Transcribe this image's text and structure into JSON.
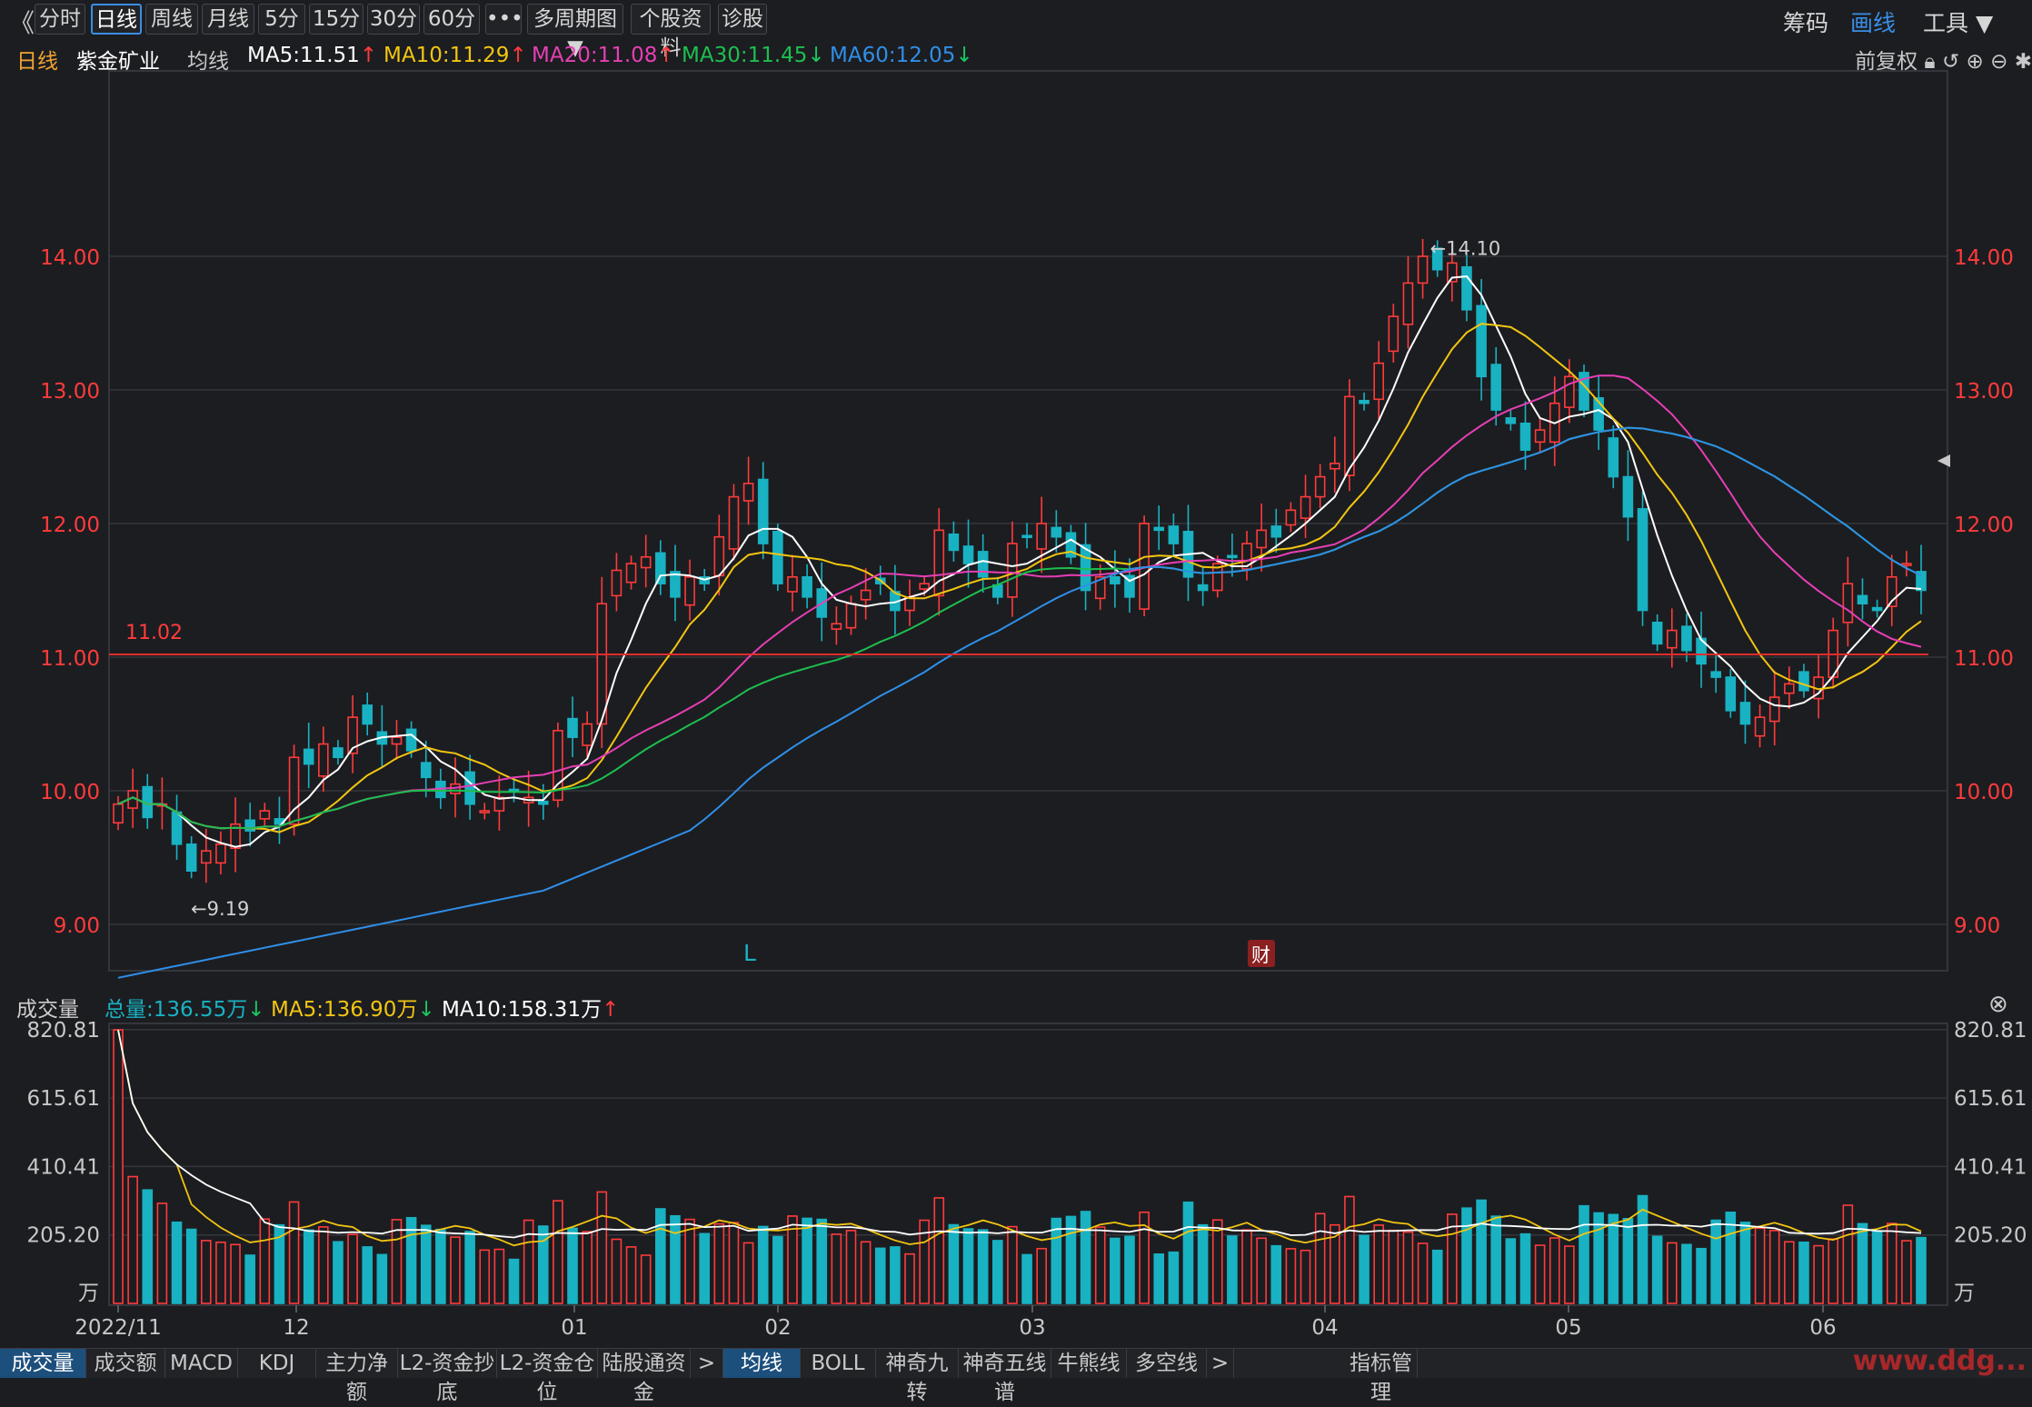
{
  "toolbar": {
    "back": "《",
    "tabs": [
      {
        "label": "分时",
        "active": false
      },
      {
        "label": "日线",
        "active": true
      },
      {
        "label": "周线",
        "active": false
      },
      {
        "label": "月线",
        "active": false
      },
      {
        "label": "5分",
        "active": false
      },
      {
        "label": "15分",
        "active": false
      },
      {
        "label": "30分",
        "active": false
      },
      {
        "label": "60分",
        "active": false
      },
      {
        "label": "•••",
        "active": false
      },
      {
        "label": "多周期图 ▼",
        "active": false
      },
      {
        "label": "个股资料",
        "active": false
      },
      {
        "label": "诊股",
        "active": false
      }
    ],
    "right": [
      "筹码",
      "画线",
      "工具 ▼"
    ]
  },
  "ma_line": {
    "period": "日线",
    "stock_name": "紫金矿业",
    "avg_label": "均线",
    "ma5": "MA5:11.51",
    "ma10": "MA10:11.29",
    "ma20": "MA20:11.08",
    "ma30": "MA30:11.45",
    "ma60": "MA60:12.05",
    "ma5_dir": "↑",
    "ma10_dir": "↑",
    "ma20_dir": "↑",
    "ma30_dir": "↓",
    "ma60_dir": "↓",
    "restore": "前复权"
  },
  "volume_line": {
    "title": "成交量",
    "total": "总量:136.55万",
    "total_dir": "↓",
    "ma5": "MA5:136.90万",
    "ma5_dir": "↓",
    "ma10": "MA10:158.31万",
    "ma10_dir": "↑"
  },
  "colors": {
    "up": "#ff3b3b",
    "down": "#19b2c2",
    "ma5": "#ffffff",
    "ma10": "#f2c511",
    "ma20": "#e63fb4",
    "ma30": "#1dbf4e",
    "ma60": "#2f8fe8",
    "price_line": "#e02d2d"
  },
  "chart_data": {
    "type": "candlestick",
    "price_axis": {
      "ticks": [
        "14.00",
        "13.00",
        "12.00",
        "11.00",
        "10.00",
        "9.00"
      ],
      "ylim": [
        8.2,
        14.3
      ]
    },
    "volume_axis": {
      "ticks": [
        "820.81",
        "615.61",
        "410.41",
        "205.20"
      ],
      "unit": "万",
      "ylim": [
        0,
        840
      ]
    },
    "x_labels": [
      "2022/11",
      "12",
      "01",
      "02",
      "03",
      "04",
      "05",
      "06"
    ],
    "annotations": {
      "high": "←14.10",
      "low": "←9.19",
      "level": "11.02",
      "marker_l": "L",
      "marker_cai": "财"
    },
    "level_line": 11.02,
    "closes": [
      9.9,
      10.0,
      9.8,
      9.9,
      9.6,
      9.4,
      9.55,
      9.6,
      9.75,
      9.7,
      9.85,
      9.75,
      10.25,
      10.2,
      10.35,
      10.25,
      10.55,
      10.5,
      10.35,
      10.4,
      10.3,
      10.1,
      9.95,
      10.05,
      9.9,
      9.85,
      9.95,
      10.0,
      9.95,
      9.9,
      10.45,
      10.4,
      10.5,
      11.4,
      11.65,
      11.7,
      11.75,
      11.55,
      11.45,
      11.6,
      11.55,
      11.9,
      12.2,
      12.3,
      11.85,
      11.55,
      11.6,
      11.45,
      11.3,
      11.25,
      11.4,
      11.5,
      11.55,
      11.35,
      11.45,
      11.55,
      11.95,
      11.8,
      11.7,
      11.6,
      11.45,
      11.85,
      11.9,
      12.0,
      11.9,
      11.75,
      11.5,
      11.6,
      11.55,
      11.45,
      12.0,
      11.95,
      11.85,
      11.6,
      11.5,
      11.7,
      11.75,
      11.85,
      11.95,
      11.9,
      12.1,
      12.2,
      12.35,
      12.45,
      12.95,
      12.9,
      13.2,
      13.55,
      13.8,
      14.0,
      13.9,
      13.95,
      13.6,
      13.1,
      12.85,
      12.75,
      12.55,
      12.7,
      12.9,
      13.1,
      12.85,
      12.7,
      12.35,
      12.05,
      11.35,
      11.1,
      11.2,
      11.05,
      10.95,
      10.85,
      10.6,
      10.5,
      10.55,
      10.7,
      10.8,
      10.75,
      10.85,
      11.2,
      11.55,
      11.4,
      11.35,
      11.6,
      11.7,
      11.5
    ]
  }
}
